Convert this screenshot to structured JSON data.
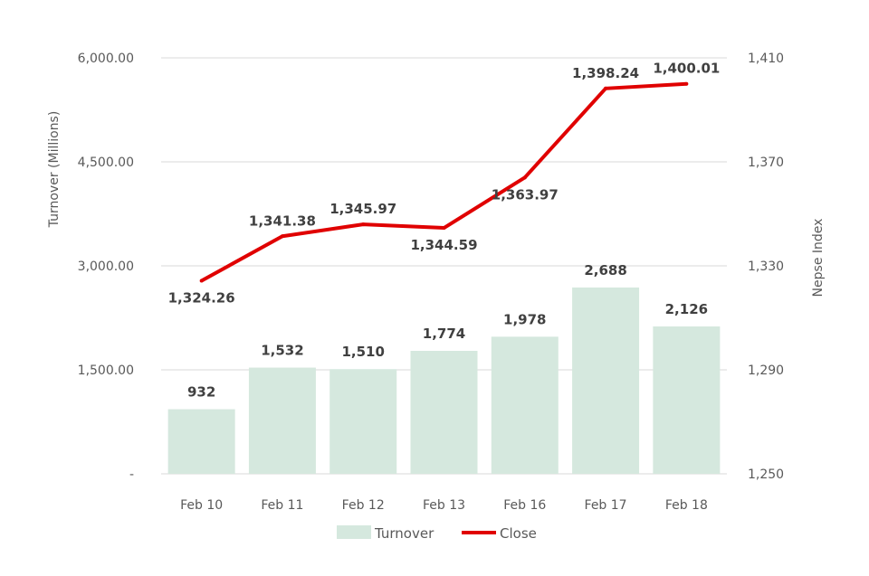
{
  "chart_data": {
    "type": "bar+line",
    "categories": [
      "Feb 10",
      "Feb 11",
      "Feb 12",
      "Feb 13",
      "Feb 16",
      "Feb 17",
      "Feb 18"
    ],
    "series": [
      {
        "name": "Turnover",
        "type": "bar",
        "axis": "left",
        "values": [
          932,
          1532,
          1510,
          1774,
          1978,
          2688,
          2126
        ],
        "labels": [
          "932",
          "1,532",
          "1,510",
          "1,774",
          "1,978",
          "2,688",
          "2,126"
        ],
        "color": "#d5e8de"
      },
      {
        "name": "Close",
        "type": "line",
        "axis": "right",
        "values": [
          1324.26,
          1341.38,
          1345.97,
          1344.59,
          1363.97,
          1398.24,
          1400.01
        ],
        "labels": [
          "1,324.26",
          "1,341.38",
          "1,345.97",
          "1,344.59",
          "1,363.97",
          "1,398.24",
          "1,400.01"
        ],
        "color": "#e00000"
      }
    ],
    "y_left": {
      "label": "Turnover (Millions)",
      "range": [
        0,
        6000
      ],
      "ticks": [
        0,
        1500,
        3000,
        4500,
        6000
      ],
      "tick_labels": [
        "-",
        "1,500.00",
        "3,000.00",
        "4,500.00",
        "6,000.00"
      ]
    },
    "y_right": {
      "label": "Nepse Index",
      "range": [
        1250,
        1410
      ],
      "ticks": [
        1250,
        1290,
        1330,
        1370,
        1410
      ],
      "tick_labels": [
        "1,250",
        "1,290",
        "1,330",
        "1,370",
        "1,410"
      ]
    },
    "grid": true,
    "legend": {
      "position": "bottom",
      "entries": [
        "Turnover",
        "Close"
      ]
    }
  }
}
